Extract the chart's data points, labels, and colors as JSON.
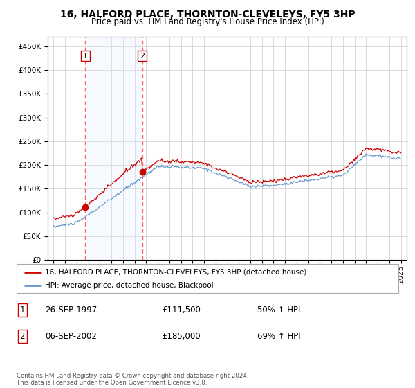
{
  "title": "16, HALFORD PLACE, THORNTON-CLEVELEYS, FY5 3HP",
  "subtitle": "Price paid vs. HM Land Registry's House Price Index (HPI)",
  "legend_line1": "16, HALFORD PLACE, THORNTON-CLEVELEYS, FY5 3HP (detached house)",
  "legend_line2": "HPI: Average price, detached house, Blackpool",
  "transaction1_date": "26-SEP-1997",
  "transaction1_price": 111500,
  "transaction1_hpi": "50% ↑ HPI",
  "transaction2_date": "06-SEP-2002",
  "transaction2_price": 185000,
  "transaction2_hpi": "69% ↑ HPI",
  "footnote": "Contains HM Land Registry data © Crown copyright and database right 2024.\nThis data is licensed under the Open Government Licence v3.0.",
  "hpi_line_color": "#6699cc",
  "price_line_color": "#cc0000",
  "marker_color": "#cc0000",
  "vline_color": "#ff6666",
  "shade_color": "#ddeeff",
  "ylim": [
    0,
    470000
  ],
  "ylabel_ticks": [
    0,
    50000,
    100000,
    150000,
    200000,
    250000,
    300000,
    350000,
    400000,
    450000
  ],
  "t1_year": 1997.75,
  "t2_year": 2002.67,
  "t1_price": 111500,
  "t2_price": 185000
}
